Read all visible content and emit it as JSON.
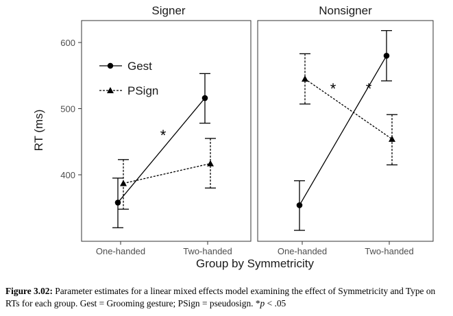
{
  "chart_data": {
    "type": "line",
    "ylabel": "RT (ms)",
    "xlabel": "Group by Symmetricity",
    "categories": [
      "One-handed",
      "Two-handed"
    ],
    "ylim": [
      290,
      640
    ],
    "yticks": [
      400,
      500,
      600
    ],
    "grid": false,
    "legend_position": "top-left of first panel",
    "legend": [
      {
        "name": "Gest",
        "marker": "circle",
        "linestyle": "solid"
      },
      {
        "name": "PSign",
        "marker": "triangle",
        "linestyle": "dashed"
      }
    ],
    "panels": [
      {
        "title": "Signer",
        "annotation": "*",
        "series": [
          {
            "name": "Gest",
            "values": [
              358,
              516
            ],
            "lower": [
              320,
              478
            ],
            "upper": [
              395,
              553
            ]
          },
          {
            "name": "PSign",
            "values": [
              387,
              417
            ],
            "lower": [
              348,
              380
            ],
            "upper": [
              423,
              455
            ]
          }
        ]
      },
      {
        "title": "Nonsigner",
        "annotation": "* *",
        "series": [
          {
            "name": "Gest",
            "values": [
              354,
              580
            ],
            "lower": [
              316,
              542
            ],
            "upper": [
              391,
              618
            ]
          },
          {
            "name": "PSign",
            "values": [
              545,
              454
            ],
            "lower": [
              507,
              415
            ],
            "upper": [
              583,
              491
            ]
          }
        ]
      }
    ]
  },
  "caption": {
    "label": "Figure 3.02:",
    "body": " Parameter estimates for a linear mixed effects model examining the effect of Symmetricity and Type on RTs for each group. Gest = Grooming gesture; PSign = pseudosign. *",
    "p_italic": "p",
    "tail": " < .05"
  }
}
